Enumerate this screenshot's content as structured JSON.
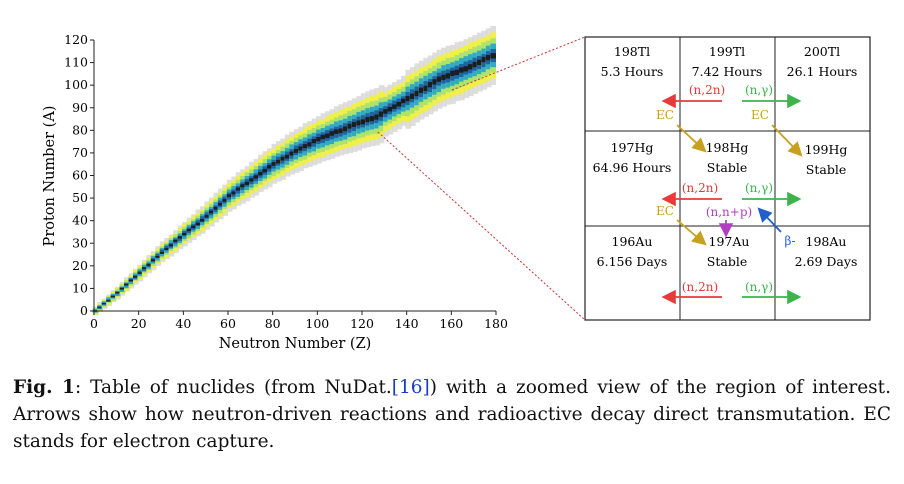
{
  "chart_data": {
    "type": "heatmap",
    "title": "",
    "xlabel": "Neutron Number (Z)",
    "ylabel": "Proton Number (A)",
    "xlim": [
      0,
      180
    ],
    "ylim": [
      0,
      120
    ],
    "xticks": [
      "0",
      "20",
      "40",
      "60",
      "80",
      "100",
      "120",
      "140",
      "160",
      "180"
    ],
    "yticks": [
      "0",
      "10",
      "20",
      "30",
      "40",
      "50",
      "60",
      "70",
      "80",
      "90",
      "100",
      "110",
      "120"
    ],
    "stability_band": {
      "valley_points": [
        [
          0,
          0
        ],
        [
          10,
          8
        ],
        [
          20,
          17
        ],
        [
          30,
          26
        ],
        [
          40,
          34
        ],
        [
          50,
          42
        ],
        [
          60,
          51
        ],
        [
          70,
          58
        ],
        [
          80,
          65
        ],
        [
          90,
          71
        ],
        [
          100,
          76
        ],
        [
          110,
          80
        ],
        [
          120,
          84
        ],
        [
          126,
          86
        ],
        [
          135,
          91
        ],
        [
          145,
          97
        ],
        [
          155,
          103
        ],
        [
          165,
          107
        ],
        [
          178,
          113
        ]
      ],
      "colors": {
        "stable": "#1a1a1a",
        "long_lived": "#1f5fa0",
        "medium": "#2aa8c8",
        "short": "#a8e070",
        "very_short": "#f0f040",
        "unknown": "#d8d8d8"
      }
    }
  },
  "zoom": {
    "grid": [
      [
        {
          "name": "198Tl",
          "life": "5.3 Hours"
        },
        {
          "name": "199Tl",
          "life": "7.42 Hours"
        },
        {
          "name": "200Tl",
          "life": "26.1 Hours"
        }
      ],
      [
        {
          "name": "197Hg",
          "life": "64.96 Hours"
        },
        {
          "name": "198Hg",
          "life": "Stable"
        },
        {
          "name": "199Hg",
          "life": "Stable"
        }
      ],
      [
        {
          "name": "196Au",
          "life": "6.156 Days"
        },
        {
          "name": "197Au",
          "life": "Stable"
        },
        {
          "name": "198Au",
          "life": "2.69 Days"
        }
      ]
    ],
    "reactions": {
      "n2n": "(n,2n)",
      "ng": "(n,γ)",
      "ec": "EC",
      "nnp": "(n,n+p)",
      "beta": "β-"
    },
    "colors": {
      "n2n": "#e83a3a",
      "ng": "#3cb44b",
      "ec": "#c8a020",
      "nnp": "#b040c0",
      "beta": "#2060c8",
      "zoom_line": "#d03030"
    }
  },
  "caption": {
    "label": "Fig. 1",
    "text_before": ": Table of nuclides (from NuDat.",
    "ref": "[16]",
    "text_after": ") with a zoomed view of the region of interest. Arrows show how neutron-driven reactions and radioactive decay direct transmutation. EC stands for electron capture."
  }
}
